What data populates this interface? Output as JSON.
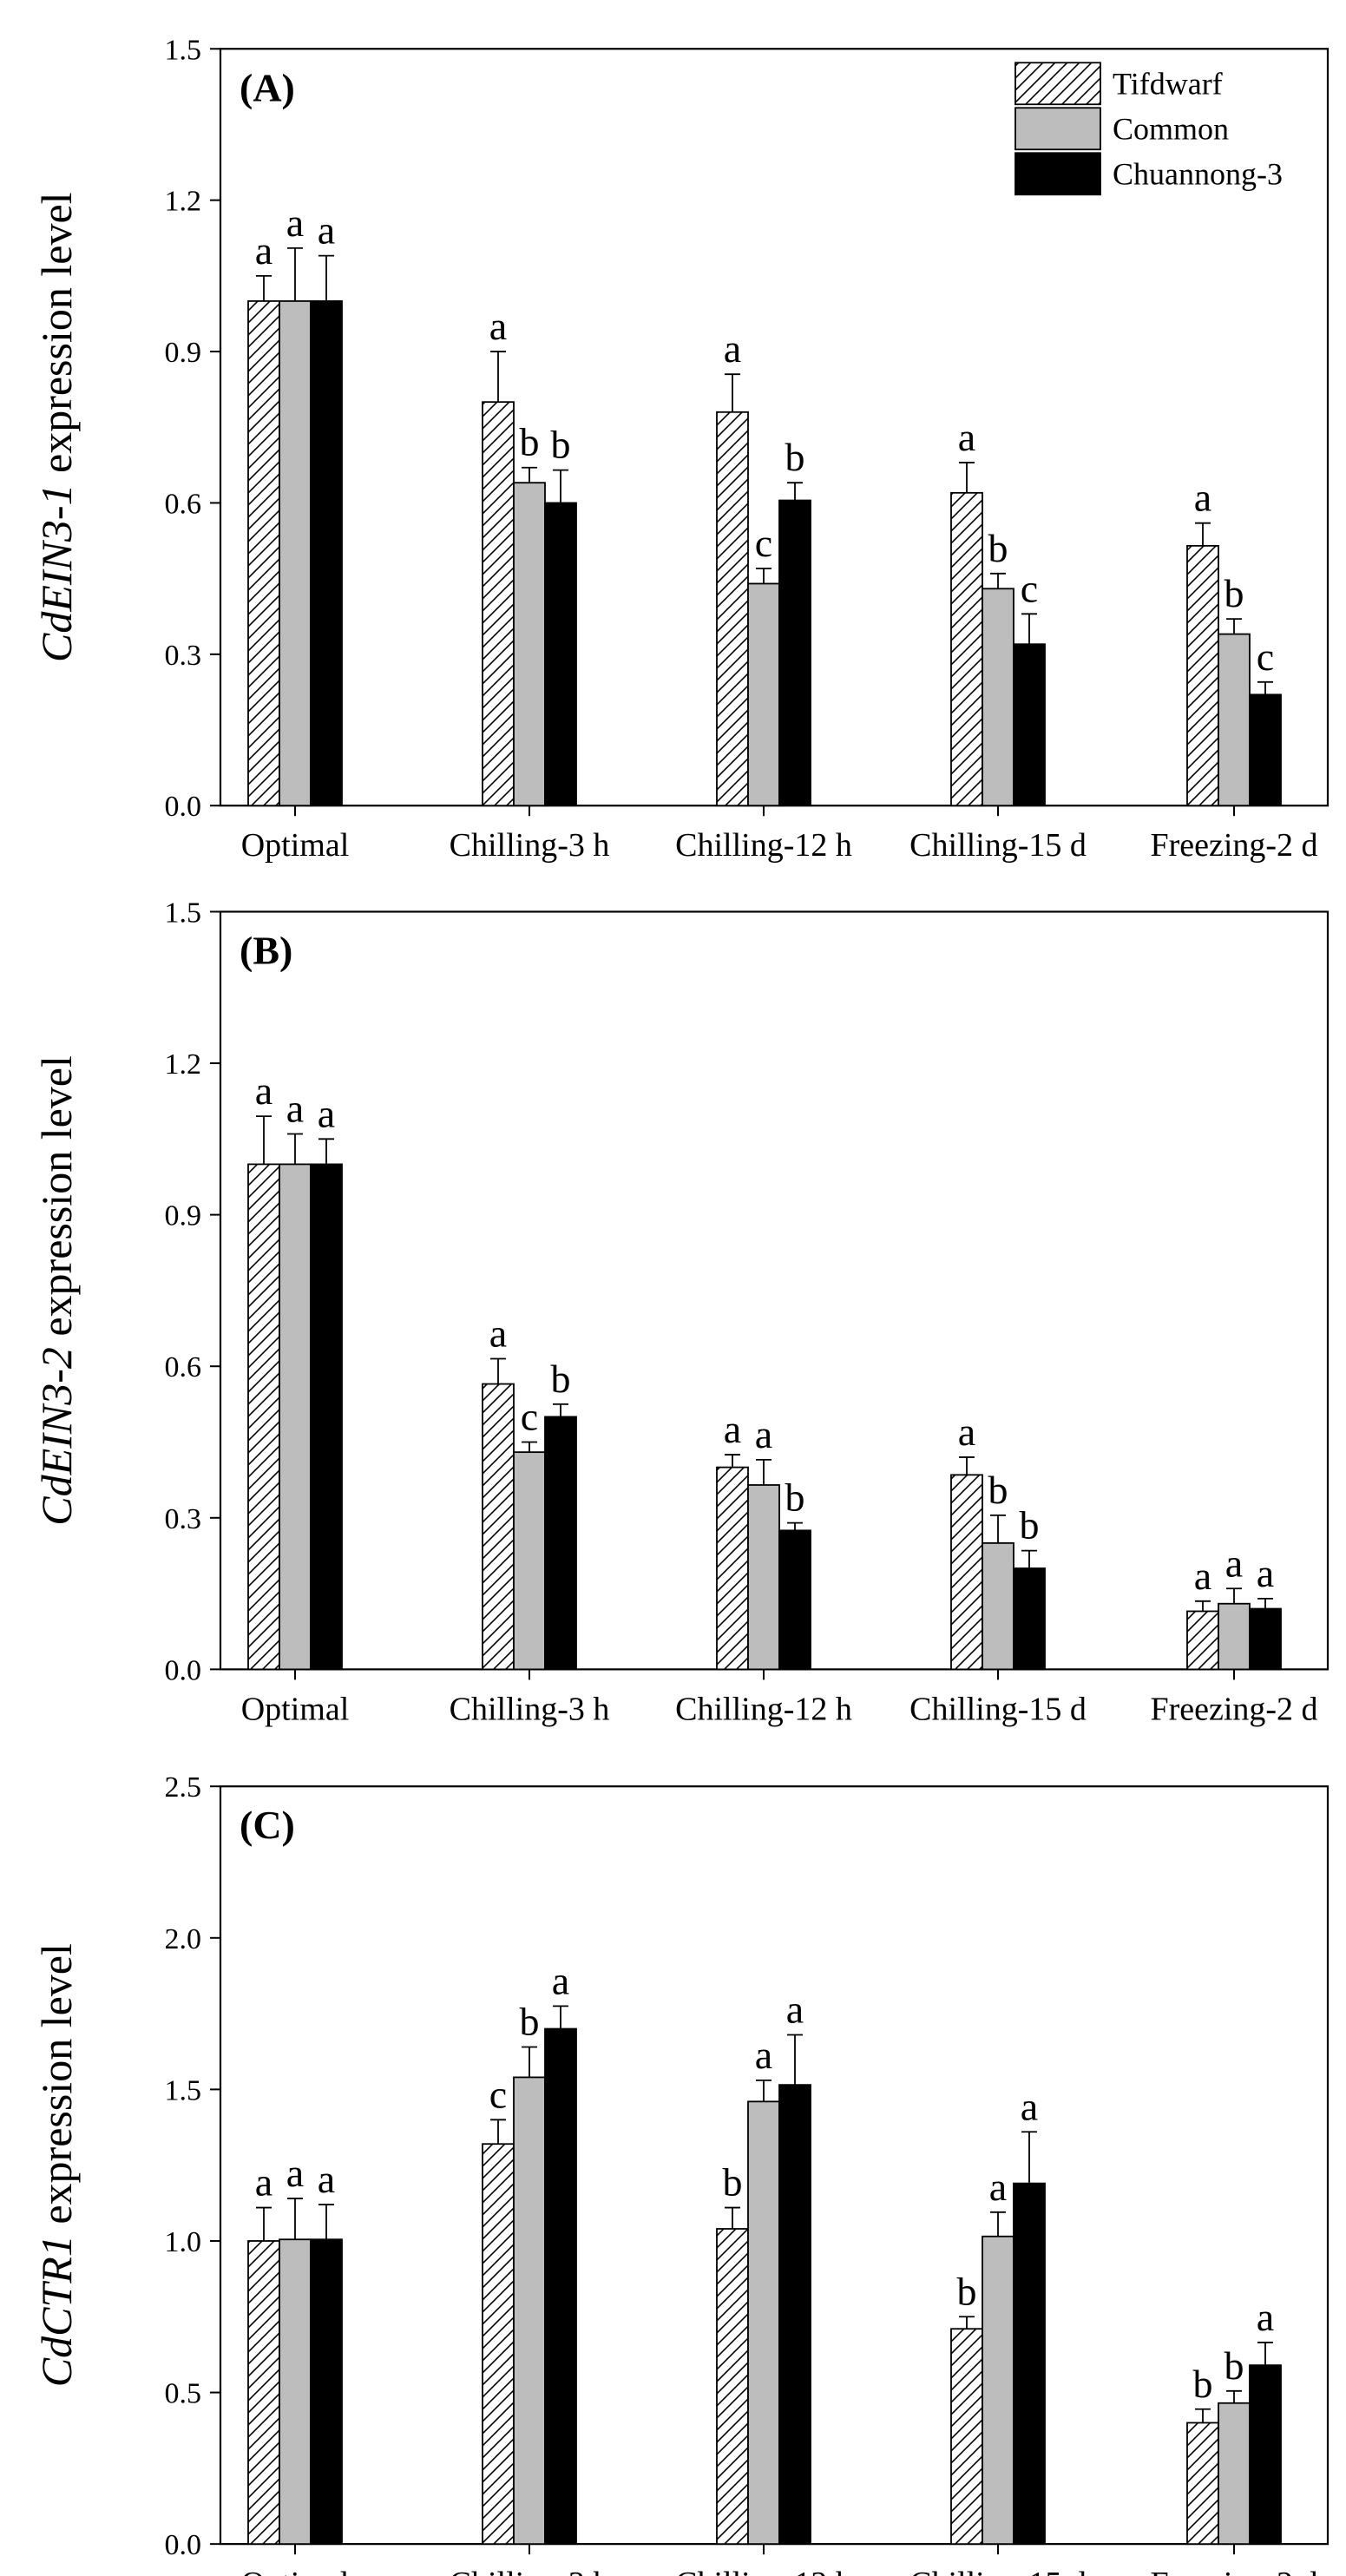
{
  "figure": {
    "categories": [
      "Optimal",
      "Chilling-3 h",
      "Chilling-12 h",
      "Chilling-15 d",
      "Freezing-2 d"
    ],
    "legend": [
      {
        "name": "Tifdwarf",
        "fill": "hatch"
      },
      {
        "name": "Common",
        "fill": "#bdbdbd"
      },
      {
        "name": "Chuannong-3",
        "fill": "#000000"
      }
    ],
    "colors": {
      "hatch_line": "#000000",
      "common": "#bdbdbd",
      "chuannong": "#000000",
      "axis": "#000000"
    }
  },
  "chart_data": [
    {
      "type": "bar",
      "panel_label": "(A)",
      "ylabel_gene": "CdEIN3-1",
      "ylabel_rest": " expression level",
      "ylim": [
        0,
        1.5
      ],
      "yticks": [
        "0.0",
        "0.3",
        "0.6",
        "0.9",
        "1.2",
        "1.5"
      ],
      "ytick_values": [
        0,
        0.3,
        0.6,
        0.9,
        1.2,
        1.5
      ],
      "legend_position": "top-right",
      "series": [
        {
          "name": "Tifdwarf",
          "values": [
            1.0,
            0.8,
            0.78,
            0.62,
            0.515
          ],
          "errors": [
            0.05,
            0.1,
            0.075,
            0.06,
            0.045
          ],
          "letters": [
            "a",
            "a",
            "a",
            "a",
            "a"
          ]
        },
        {
          "name": "Common",
          "values": [
            1.0,
            0.64,
            0.44,
            0.43,
            0.34
          ],
          "errors": [
            0.105,
            0.03,
            0.03,
            0.03,
            0.03
          ],
          "letters": [
            "a",
            "b",
            "c",
            "b",
            "b"
          ]
        },
        {
          "name": "Chuannong-3",
          "values": [
            1.0,
            0.6,
            0.605,
            0.32,
            0.22
          ],
          "errors": [
            0.09,
            0.065,
            0.035,
            0.06,
            0.025
          ],
          "letters": [
            "a",
            "b",
            "b",
            "c",
            "c"
          ]
        }
      ]
    },
    {
      "type": "bar",
      "panel_label": "(B)",
      "ylabel_gene": "CdEIN3-2",
      "ylabel_rest": " expression level",
      "ylim": [
        0,
        1.5
      ],
      "yticks": [
        "0.0",
        "0.3",
        "0.6",
        "0.9",
        "1.2",
        "1.5"
      ],
      "ytick_values": [
        0,
        0.3,
        0.6,
        0.9,
        1.2,
        1.5
      ],
      "series": [
        {
          "name": "Tifdwarf",
          "values": [
            1.0,
            0.565,
            0.4,
            0.385,
            0.115
          ],
          "errors": [
            0.095,
            0.05,
            0.025,
            0.035,
            0.02
          ],
          "letters": [
            "a",
            "a",
            "a",
            "a",
            "a"
          ]
        },
        {
          "name": "Common",
          "values": [
            1.0,
            0.43,
            0.365,
            0.25,
            0.13
          ],
          "errors": [
            0.06,
            0.02,
            0.05,
            0.055,
            0.03
          ],
          "letters": [
            "a",
            "c",
            "a",
            "b",
            "a"
          ]
        },
        {
          "name": "Chuannong-3",
          "values": [
            1.0,
            0.5,
            0.275,
            0.2,
            0.12
          ],
          "errors": [
            0.05,
            0.025,
            0.015,
            0.035,
            0.02
          ],
          "letters": [
            "a",
            "b",
            "b",
            "b",
            "a"
          ]
        }
      ]
    },
    {
      "type": "bar",
      "panel_label": "(C)",
      "ylabel_gene": "CdCTR1",
      "ylabel_rest": " expression level",
      "ylim": [
        0,
        2.5
      ],
      "yticks": [
        "0.0",
        "0.5",
        "1.0",
        "1.5",
        "2.0",
        "2.5"
      ],
      "ytick_values": [
        0,
        0.5,
        1.0,
        1.5,
        2.0,
        2.5
      ],
      "series": [
        {
          "name": "Tifdwarf",
          "values": [
            1.0,
            1.32,
            1.04,
            0.71,
            0.4
          ],
          "errors": [
            0.11,
            0.08,
            0.07,
            0.04,
            0.045
          ],
          "letters": [
            "a",
            "c",
            "b",
            "b",
            "b"
          ]
        },
        {
          "name": "Common",
          "values": [
            1.005,
            1.54,
            1.46,
            1.015,
            0.465
          ],
          "errors": [
            0.135,
            0.1,
            0.07,
            0.08,
            0.04
          ],
          "letters": [
            "a",
            "b",
            "a",
            "a",
            "b"
          ]
        },
        {
          "name": "Chuannong-3",
          "values": [
            1.005,
            1.7,
            1.515,
            1.19,
            0.59
          ],
          "errors": [
            0.115,
            0.075,
            0.165,
            0.17,
            0.075
          ],
          "letters": [
            "a",
            "a",
            "a",
            "a",
            "a"
          ]
        }
      ]
    }
  ]
}
